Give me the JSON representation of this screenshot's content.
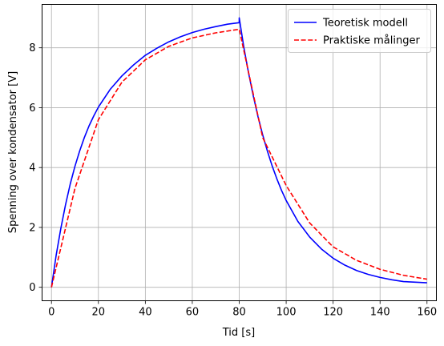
{
  "chart_data": {
    "type": "line",
    "title": "",
    "xlabel": "Tid [s]",
    "ylabel": "Spenning over kondensator [V]",
    "xlim": [
      -4,
      164
    ],
    "ylim": [
      -0.45,
      9.45
    ],
    "xticks": [
      0,
      20,
      40,
      60,
      80,
      100,
      120,
      140,
      160
    ],
    "yticks": [
      0,
      2,
      4,
      6,
      8
    ],
    "xtick_labels": [
      "0",
      "20",
      "40",
      "60",
      "80",
      "100",
      "120",
      "140",
      "160"
    ],
    "ytick_labels": [
      "0",
      "2",
      "4",
      "6",
      "8"
    ],
    "grid": true,
    "legend_position": "top-right",
    "series": [
      {
        "name": "Teoretisk modell",
        "color": "#0000ff",
        "style": "solid",
        "x": [
          0,
          2,
          4,
          6,
          8,
          10,
          12,
          14,
          16,
          18,
          20,
          25,
          30,
          35,
          40,
          45,
          50,
          55,
          60,
          65,
          70,
          75,
          80,
          80,
          82,
          84,
          86,
          88,
          90,
          92,
          94,
          96,
          98,
          100,
          105,
          110,
          115,
          120,
          125,
          130,
          135,
          140,
          145,
          150,
          155,
          160
        ],
        "y": [
          0.0,
          1.07,
          1.97,
          2.76,
          3.45,
          4.04,
          4.55,
          5.0,
          5.39,
          5.72,
          6.02,
          6.61,
          7.06,
          7.43,
          7.75,
          7.99,
          8.2,
          8.37,
          8.51,
          8.62,
          8.71,
          8.79,
          8.84,
          9.0,
          8.0,
          7.15,
          6.39,
          5.7,
          5.09,
          4.55,
          4.06,
          3.63,
          3.24,
          2.9,
          2.2,
          1.68,
          1.28,
          0.97,
          0.74,
          0.56,
          0.43,
          0.33,
          0.25,
          0.19,
          0.17,
          0.15
        ]
      },
      {
        "name": "Praktiske målinger",
        "color": "#ff0000",
        "style": "dashed",
        "x": [
          0,
          10,
          20,
          30,
          40,
          50,
          60,
          70,
          80,
          90,
          100,
          110,
          120,
          130,
          140,
          150,
          160
        ],
        "y": [
          0.0,
          3.3,
          5.6,
          6.85,
          7.6,
          8.05,
          8.33,
          8.5,
          8.62,
          5.0,
          3.4,
          2.15,
          1.35,
          0.9,
          0.6,
          0.4,
          0.27
        ]
      }
    ]
  }
}
